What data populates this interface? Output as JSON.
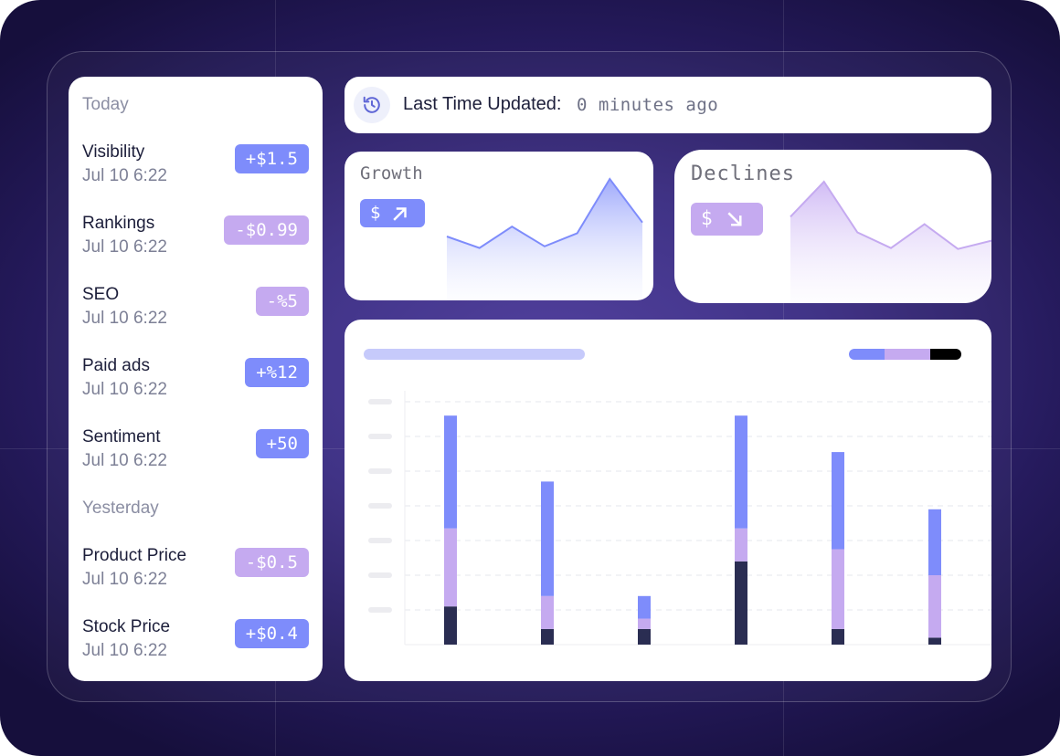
{
  "colors": {
    "accent_up": "#7e8cfb",
    "accent_down": "#c5aaf0",
    "dark": "#2a2d52",
    "text": "#1c1e3a",
    "muted": "#7d8096"
  },
  "sidebar": {
    "today_label": "Today",
    "yesterday_label": "Yesterday",
    "today_items": [
      {
        "title": "Visibility",
        "time": "Jul 10 6:22",
        "badge": "+$1.5",
        "trend": "up"
      },
      {
        "title": "Rankings",
        "time": "Jul 10 6:22",
        "badge": "-$0.99",
        "trend": "down"
      },
      {
        "title": "SEO",
        "time": "Jul 10 6:22",
        "badge": "-%5",
        "trend": "down"
      },
      {
        "title": "Paid ads",
        "time": "Jul 10 6:22",
        "badge": "+%12",
        "trend": "up"
      },
      {
        "title": "Sentiment",
        "time": "Jul 10 6:22",
        "badge": "+50",
        "trend": "up"
      }
    ],
    "yesterday_items": [
      {
        "title": "Product Price",
        "time": "Jul 10 6:22",
        "badge": "-$0.5",
        "trend": "down"
      },
      {
        "title": "Stock Price",
        "time": "Jul 10 6:22",
        "badge": "+$0.4",
        "trend": "up"
      }
    ]
  },
  "header": {
    "icon": "history-icon",
    "label": "Last Time Updated:",
    "value": "0 minutes ago"
  },
  "growth_card": {
    "title": "Growth",
    "pill_symbol": "$",
    "pill_icon": "arrow-up-right-icon",
    "sparkline": [
      30,
      16,
      42,
      18,
      34,
      100,
      47
    ]
  },
  "declines_card": {
    "title": "Declines",
    "pill_symbol": "$",
    "pill_icon": "arrow-down-right-icon",
    "sparkline": [
      62,
      100,
      45,
      28,
      54,
      27,
      36
    ]
  },
  "chart_data": {
    "type": "bar",
    "stacked": true,
    "ylim": [
      0,
      7
    ],
    "grid": true,
    "categories": [
      "",
      "",
      "",
      "",
      "",
      ""
    ],
    "series": [
      {
        "color": "#2a2d52",
        "values": [
          1.1,
          0.45,
          0.45,
          2.4,
          0.45,
          0.2
        ]
      },
      {
        "color": "#c5aaf0",
        "values": [
          2.25,
          0.95,
          0.3,
          0.95,
          2.3,
          1.8
        ]
      },
      {
        "color": "#7e8cfb",
        "values": [
          3.25,
          3.3,
          0.65,
          3.25,
          2.8,
          1.9
        ]
      }
    ],
    "legend_colors": [
      "#7e8cfb",
      "#c5aaf0",
      "#000000"
    ],
    "legend_position": "top-right"
  }
}
